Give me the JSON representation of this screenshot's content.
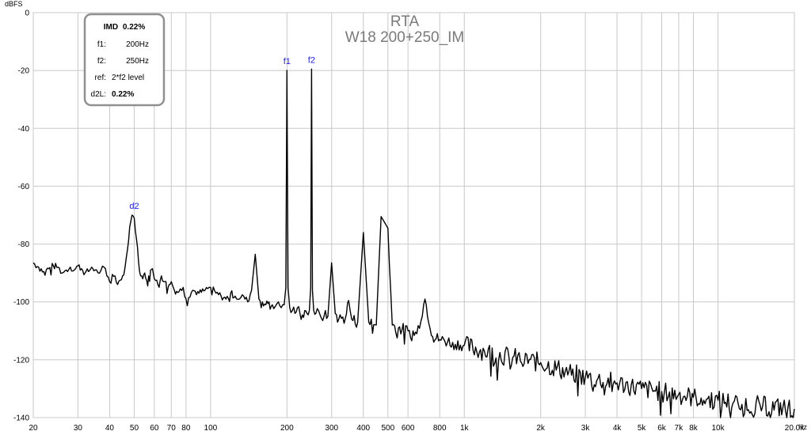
{
  "chart_data": {
    "type": "line",
    "title": "RTA",
    "subtitle": "W18 200+250_IM",
    "ylabel": "dBFS",
    "xunit": "Hz",
    "x_scale": "log",
    "xlim": [
      20,
      20000
    ],
    "ylim": [
      -140,
      0
    ],
    "grid": true,
    "x_ticks": [
      {
        "value": 20,
        "label": "20"
      },
      {
        "value": 30,
        "label": "30"
      },
      {
        "value": 40,
        "label": "40"
      },
      {
        "value": 50,
        "label": "50"
      },
      {
        "value": 60,
        "label": "60"
      },
      {
        "value": 70,
        "label": "70"
      },
      {
        "value": 80,
        "label": "80"
      },
      {
        "value": 100,
        "label": "100"
      },
      {
        "value": 200,
        "label": "200"
      },
      {
        "value": 300,
        "label": "300"
      },
      {
        "value": 400,
        "label": "400"
      },
      {
        "value": 500,
        "label": "500"
      },
      {
        "value": 600,
        "label": "600"
      },
      {
        "value": 800,
        "label": "800"
      },
      {
        "value": 1000,
        "label": "1k"
      },
      {
        "value": 2000,
        "label": "2k"
      },
      {
        "value": 3000,
        "label": "3k"
      },
      {
        "value": 4000,
        "label": "4k"
      },
      {
        "value": 5000,
        "label": "5k"
      },
      {
        "value": 6000,
        "label": "6k"
      },
      {
        "value": 7000,
        "label": "7k"
      },
      {
        "value": 8000,
        "label": "8k"
      },
      {
        "value": 10000,
        "label": "10k"
      },
      {
        "value": 20000,
        "label": "20.0k"
      }
    ],
    "y_ticks": [
      {
        "value": 0,
        "label": "0"
      },
      {
        "value": -20,
        "label": "-20"
      },
      {
        "value": -40,
        "label": "-40"
      },
      {
        "value": -60,
        "label": "-60"
      },
      {
        "value": -80,
        "label": "-80"
      },
      {
        "value": -100,
        "label": "-100"
      },
      {
        "value": -120,
        "label": "-120"
      },
      {
        "value": -140,
        "label": "-140"
      }
    ],
    "series": [
      {
        "color": "#000000",
        "x": [
          20,
          21,
          22,
          23,
          24,
          25,
          26,
          27,
          28,
          29,
          30,
          31,
          32,
          33,
          34,
          35,
          36,
          37,
          38,
          39,
          40,
          41,
          42,
          43,
          44,
          45,
          46,
          47,
          48,
          49,
          50,
          51,
          52,
          53,
          54,
          55,
          56,
          57,
          58,
          59,
          60,
          62,
          64,
          66,
          68,
          70,
          72,
          75,
          78,
          80,
          85,
          90,
          95,
          100,
          105,
          110,
          115,
          120,
          125,
          130,
          135,
          140,
          145,
          150,
          155,
          160,
          165,
          170,
          175,
          180,
          185,
          190,
          195,
          198,
          200,
          202,
          205,
          210,
          215,
          220,
          225,
          230,
          235,
          240,
          245,
          248,
          250,
          252,
          255,
          260,
          270,
          280,
          290,
          300,
          310,
          320,
          340,
          350,
          360,
          380,
          400,
          420,
          450,
          470,
          500,
          520,
          550,
          600,
          650,
          700,
          750,
          800,
          900,
          1000,
          1200,
          1500,
          2000,
          2500,
          3000,
          4000,
          5000,
          6000,
          7000,
          8000,
          10000,
          12000,
          15000,
          20000
        ],
        "y": [
          -86.5,
          -88,
          -89.5,
          -88.5,
          -87.5,
          -88,
          -90,
          -89,
          -88,
          -89,
          -87.5,
          -88.5,
          -90,
          -89.5,
          -88,
          -89,
          -90,
          -89,
          -88,
          -91,
          -93,
          -90.5,
          -91,
          -94,
          -92.5,
          -91,
          -88,
          -82,
          -74,
          -70,
          -71,
          -78,
          -86,
          -91,
          -92,
          -90,
          -92.5,
          -91,
          -89,
          -88.5,
          -92,
          -94,
          -91,
          -93,
          -95,
          -93,
          -96,
          -96.5,
          -95,
          -99,
          -96,
          -97,
          -96,
          -95,
          -97,
          -98,
          -99,
          -97,
          -98,
          -99,
          -98,
          -100,
          -96,
          -83.5,
          -99,
          -100,
          -101,
          -100,
          -101,
          -101.5,
          -100,
          -102,
          -101,
          -95,
          -20,
          -95,
          -102,
          -103,
          -104,
          -102,
          -104,
          -104.5,
          -103,
          -104,
          -103,
          -95,
          -19.5,
          -96,
          -103,
          -104,
          -104.5,
          -105,
          -105,
          -86.5,
          -104,
          -106,
          -105.5,
          -99.5,
          -106,
          -107,
          -76,
          -107,
          -108,
          -70.5,
          -74.5,
          -108,
          -109,
          -110,
          -111,
          -99,
          -112,
          -113,
          -114,
          -115,
          -117,
          -119,
          -121,
          -124,
          -126,
          -128,
          -130,
          -131,
          -132,
          -133,
          -134,
          -135,
          -136,
          -137
        ]
      }
    ],
    "annotations": [
      {
        "label": "d2",
        "x": 50,
        "y": -70
      },
      {
        "label": "f1",
        "x": 200,
        "y": -20
      },
      {
        "label": "f2",
        "x": 250,
        "y": -19.5
      }
    ],
    "legend_box": {
      "title_label": "IMD",
      "title_value": "0.22%",
      "rows": [
        {
          "label": "f1:",
          "value": "200Hz",
          "bold": false
        },
        {
          "label": "f2:",
          "value": "250Hz",
          "bold": false
        },
        {
          "label": "ref:",
          "value": "2*f2 level",
          "bold": false
        },
        {
          "label": "d2L:",
          "value": "0.22%",
          "bold": true
        }
      ]
    }
  }
}
